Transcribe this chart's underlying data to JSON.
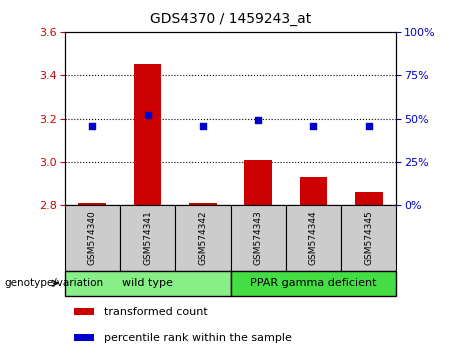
{
  "title": "GDS4370 / 1459243_at",
  "samples": [
    "GSM574340",
    "GSM574341",
    "GSM574342",
    "GSM574343",
    "GSM574344",
    "GSM574345"
  ],
  "bar_values": [
    2.81,
    3.45,
    2.81,
    3.01,
    2.93,
    2.86
  ],
  "percentile_values": [
    46,
    52,
    46,
    49,
    46,
    46
  ],
  "ylim_left": [
    2.8,
    3.6
  ],
  "ylim_right": [
    0,
    100
  ],
  "yticks_left": [
    2.8,
    3.0,
    3.2,
    3.4,
    3.6
  ],
  "yticks_right": [
    0,
    25,
    50,
    75,
    100
  ],
  "bar_color": "#cc0000",
  "dot_color": "#0000cc",
  "bar_width": 0.5,
  "groups": [
    {
      "label": "wild type",
      "indices": [
        0,
        1,
        2
      ],
      "color": "#88ee88"
    },
    {
      "label": "PPAR gamma deficient",
      "indices": [
        3,
        4,
        5
      ],
      "color": "#44dd44"
    }
  ],
  "group_label": "genotype/variation",
  "legend_items": [
    {
      "label": "transformed count",
      "color": "#cc0000"
    },
    {
      "label": "percentile rank within the sample",
      "color": "#0000cc"
    }
  ],
  "grid_color": "#000000",
  "tick_color_left": "#cc0000",
  "tick_color_right": "#0000cc",
  "sample_box_color": "#cccccc",
  "gridlines_at": [
    3.0,
    3.2,
    3.4
  ]
}
